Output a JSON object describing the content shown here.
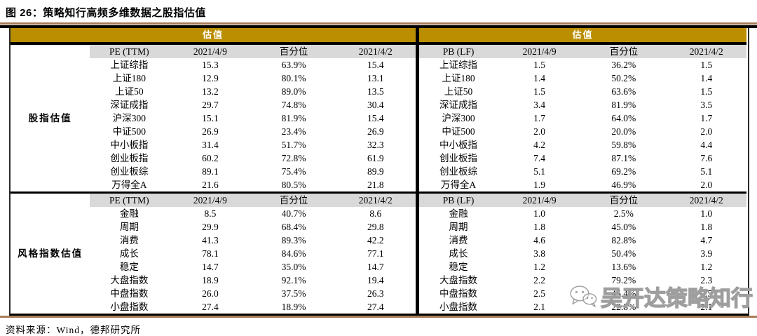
{
  "title": "图 26：策略知行高频多维数据之股指估值",
  "source": "资料来源：Wind，德邦研究所",
  "colors": {
    "accent_gold": "#BB8E02",
    "subheader_gray": "#D9D9D9",
    "rule_brown": "#A67C58",
    "border_black": "#000000",
    "watermark_gray": "#9E9E9E"
  },
  "watermark": {
    "icon": "wechat-icon",
    "text": "吴开达策略知行"
  },
  "tables": [
    {
      "band_title": "估值",
      "show_group_labels": true,
      "groups": [
        {
          "label": "股指估值",
          "columns": [
            "PE (TTM)",
            "2021/4/9",
            "百分位",
            "2021/4/2"
          ],
          "rows": [
            [
              "上证综指",
              "15.3",
              "63.9%",
              "15.4"
            ],
            [
              "上证180",
              "12.9",
              "80.1%",
              "13.1"
            ],
            [
              "上证50",
              "13.2",
              "89.0%",
              "13.5"
            ],
            [
              "深证成指",
              "29.7",
              "74.8%",
              "30.4"
            ],
            [
              "沪深300",
              "15.1",
              "81.9%",
              "15.4"
            ],
            [
              "中证500",
              "26.9",
              "23.4%",
              "26.9"
            ],
            [
              "中小板指",
              "31.4",
              "51.7%",
              "32.3"
            ],
            [
              "创业板指",
              "60.2",
              "72.8%",
              "61.9"
            ],
            [
              "创业板综",
              "89.1",
              "75.4%",
              "89.9"
            ],
            [
              "万得全A",
              "21.6",
              "80.5%",
              "21.8"
            ]
          ]
        },
        {
          "label": "风格指数估值",
          "columns": [
            "PE (TTM)",
            "2021/4/9",
            "百分位",
            "2021/4/2"
          ],
          "rows": [
            [
              "金融",
              "8.5",
              "40.7%",
              "8.6"
            ],
            [
              "周期",
              "29.9",
              "68.4%",
              "29.8"
            ],
            [
              "消费",
              "41.3",
              "89.3%",
              "42.2"
            ],
            [
              "成长",
              "78.1",
              "84.6%",
              "77.1"
            ],
            [
              "稳定",
              "14.7",
              "35.0%",
              "14.7"
            ],
            [
              "大盘指数",
              "18.9",
              "92.1%",
              "19.4"
            ],
            [
              "中盘指数",
              "26.0",
              "37.5%",
              "26.3"
            ],
            [
              "小盘指数",
              "27.4",
              "18.9%",
              "27.4"
            ]
          ]
        }
      ]
    },
    {
      "band_title": "估值",
      "show_group_labels": false,
      "groups": [
        {
          "label": "",
          "columns": [
            "PB (LF)",
            "2021/4/9",
            "百分位",
            "2021/4/2"
          ],
          "rows": [
            [
              "上证综指",
              "1.5",
              "36.2%",
              "1.5"
            ],
            [
              "上证180",
              "1.4",
              "50.2%",
              "1.4"
            ],
            [
              "上证50",
              "1.5",
              "63.6%",
              "1.5"
            ],
            [
              "深证成指",
              "3.4",
              "81.9%",
              "3.5"
            ],
            [
              "沪深300",
              "1.7",
              "64.0%",
              "1.7"
            ],
            [
              "中证500",
              "2.0",
              "20.0%",
              "2.0"
            ],
            [
              "中小板指",
              "4.2",
              "59.8%",
              "4.4"
            ],
            [
              "创业板指",
              "7.4",
              "87.1%",
              "7.6"
            ],
            [
              "创业板综",
              "5.1",
              "69.2%",
              "5.1"
            ],
            [
              "万得全A",
              "1.9",
              "46.9%",
              "2.0"
            ]
          ]
        },
        {
          "label": "",
          "columns": [
            "PB (LF)",
            "2021/4/9",
            "百分位",
            "2021/4/2"
          ],
          "rows": [
            [
              "金融",
              "1.0",
              "2.5%",
              "1.0"
            ],
            [
              "周期",
              "1.8",
              "45.0%",
              "1.8"
            ],
            [
              "消费",
              "4.6",
              "82.8%",
              "4.7"
            ],
            [
              "成长",
              "3.8",
              "50.4%",
              "3.9"
            ],
            [
              "稳定",
              "1.2",
              "13.6%",
              "1.2"
            ],
            [
              "大盘指数",
              "2.2",
              "79.2%",
              "2.3"
            ],
            [
              "中盘指数",
              "2.5",
              "45.4%",
              "2.5"
            ],
            [
              "小盘指数",
              "2.1",
              "22.8%",
              "2.1"
            ]
          ]
        }
      ]
    }
  ]
}
